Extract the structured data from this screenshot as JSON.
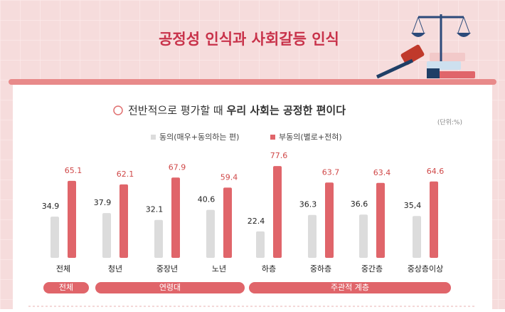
{
  "chart_data": {
    "type": "bar",
    "title": "공정성 인식과 사회갈등 인식",
    "subtitle": [
      "전반적으로 평가할 때",
      "우리 사회는 공정한 편이다"
    ],
    "unit": "(단위:%)",
    "groups": [
      {
        "label": "전체",
        "categories": [
          "전체"
        ]
      },
      {
        "label": "연령대",
        "categories": [
          "청년",
          "중장년",
          "노년"
        ]
      },
      {
        "label": "주관적 계층",
        "categories": [
          "하층",
          "중하층",
          "중간층",
          "중상층이상"
        ]
      }
    ],
    "series": [
      {
        "name": "동의(매우+동의하는 편)",
        "color": "#dcdcdc",
        "values": [
          34.9,
          37.9,
          32.1,
          40.6,
          22.4,
          36.3,
          36.6,
          35.4
        ],
        "value_labels": [
          "34.9",
          "37.9",
          "32.1",
          "40.6",
          "22.4",
          "36.3",
          "36.6",
          "35,4"
        ]
      },
      {
        "name": "부동의(별로+전혀)",
        "color": "#e0656a",
        "values": [
          65.1,
          62.1,
          67.9,
          59.4,
          77.6,
          63.7,
          63.4,
          64.6
        ]
      }
    ]
  }
}
